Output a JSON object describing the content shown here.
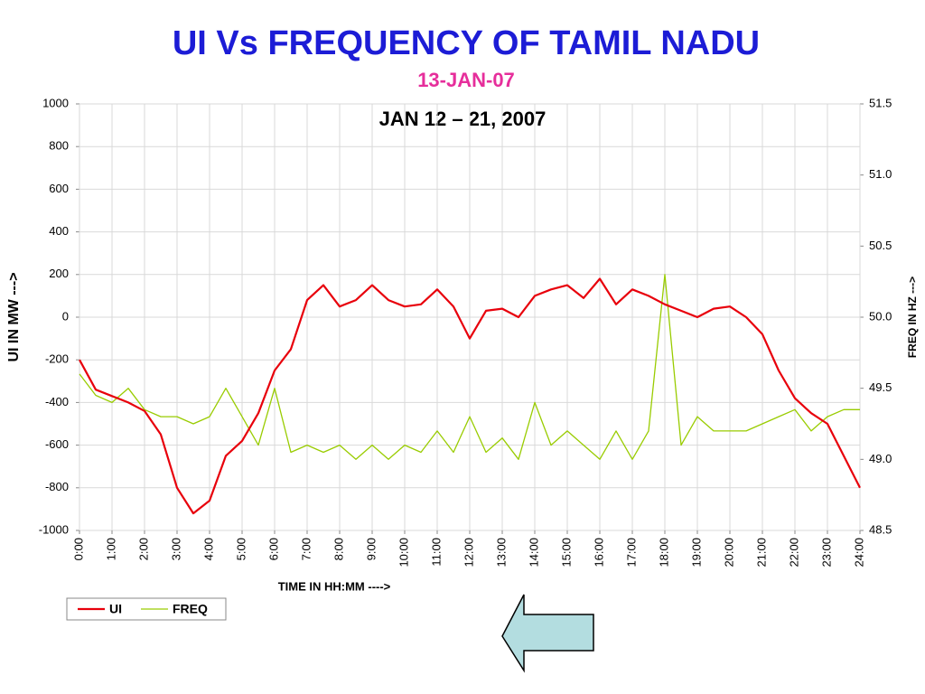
{
  "chart_data": {
    "type": "line",
    "title": "UI Vs FREQUENCY OF TAMIL NADU",
    "subtitle": "13-JAN-07",
    "annotation": "JAN 12 – 21, 2007",
    "y_label": "UI IN MW  --->",
    "y2_label": "FREQ IN HZ  --->",
    "x_label": "TIME IN HH:MM  ---->",
    "categories": [
      "0:00",
      null,
      "1:00",
      null,
      "2:00",
      null,
      "3:00",
      null,
      "4:00",
      null,
      "5:00",
      null,
      "6:00",
      null,
      "7:00",
      null,
      "8:00",
      null,
      "9:00",
      null,
      "10:00",
      null,
      "11:00",
      null,
      "12:00",
      null,
      "13:00",
      null,
      "14:00",
      null,
      "15:00",
      null,
      "16:00",
      null,
      "17:00",
      null,
      "18:00",
      null,
      "19:00",
      null,
      "20:00",
      null,
      "21:00",
      null,
      "22:00",
      null,
      "23:00",
      null,
      "24:00"
    ],
    "series": [
      {
        "name": "UI",
        "color": "#e8000b",
        "axis": "y",
        "values": [
          -200,
          -340,
          -370,
          -400,
          -440,
          -550,
          -800,
          -920,
          -860,
          -650,
          -580,
          -450,
          -250,
          -150,
          80,
          150,
          50,
          80,
          150,
          80,
          50,
          60,
          130,
          50,
          -100,
          30,
          40,
          0,
          100,
          130,
          150,
          90,
          180,
          60,
          130,
          100,
          60,
          30,
          0,
          40,
          50,
          0,
          -80,
          -250,
          -380,
          -450,
          -500,
          -650,
          -800
        ]
      },
      {
        "name": "FREQ",
        "color": "#99cc00",
        "axis": "y2",
        "values": [
          49.6,
          49.45,
          49.4,
          49.5,
          49.35,
          49.3,
          49.3,
          49.25,
          49.3,
          49.5,
          49.3,
          49.1,
          49.5,
          49.05,
          49.1,
          49.05,
          49.1,
          49.0,
          49.1,
          49.0,
          49.1,
          49.05,
          49.2,
          49.05,
          49.3,
          49.05,
          49.15,
          49.0,
          49.4,
          49.1,
          49.2,
          49.1,
          49.0,
          49.2,
          49.0,
          49.2,
          50.3,
          49.1,
          49.3,
          49.2,
          49.2,
          49.2,
          49.25,
          49.3,
          49.35,
          49.2,
          49.3,
          49.35,
          49.35
        ]
      }
    ],
    "ylim": [
      -1000,
      1000
    ],
    "yticks": [
      -1000,
      -800,
      -600,
      -400,
      -200,
      0,
      200,
      400,
      600,
      800,
      1000
    ],
    "y2lim": [
      48.5,
      51.5
    ],
    "y2ticks": [
      48.5,
      {
        "value": 49,
        "label": "49.0"
      },
      49.5,
      {
        "value": 50,
        "label": "50.0"
      },
      50.5,
      {
        "value": 51,
        "label": "51.0"
      },
      51.5
    ],
    "grid": true,
    "legend": "bottom-left"
  }
}
